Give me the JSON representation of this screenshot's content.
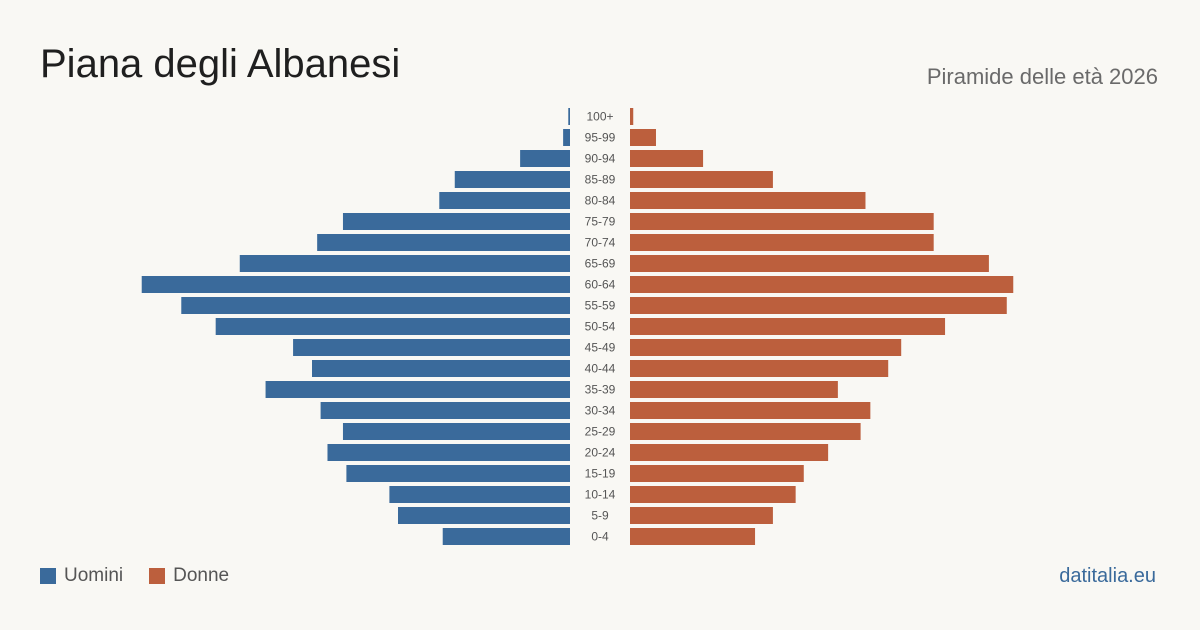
{
  "header": {
    "title": "Piana degli Albanesi",
    "subtitle": "Piramide delle età 2026"
  },
  "footer": {
    "brand": "datitalia.eu"
  },
  "colors": {
    "men": "#3a6a9b",
    "women": "#bc5f3d"
  },
  "chart_data": {
    "type": "bar",
    "orientation": "horizontal-pyramid",
    "categories": [
      "100+",
      "95-99",
      "90-94",
      "85-89",
      "80-84",
      "75-79",
      "70-74",
      "65-69",
      "60-64",
      "55-59",
      "50-54",
      "45-49",
      "40-44",
      "35-39",
      "30-34",
      "25-29",
      "20-24",
      "15-19",
      "10-14",
      "5-9",
      "0-4"
    ],
    "series": [
      {
        "name": "Uomini",
        "values": [
          1,
          4,
          29,
          67,
          76,
          132,
          147,
          192,
          249,
          226,
          206,
          161,
          150,
          177,
          145,
          132,
          141,
          130,
          105,
          100,
          74
        ]
      },
      {
        "name": "Donne",
        "values": [
          2,
          16,
          45,
          88,
          145,
          187,
          187,
          221,
          236,
          232,
          194,
          167,
          159,
          128,
          148,
          142,
          122,
          107,
          102,
          88,
          77
        ]
      }
    ],
    "xlim": [
      0,
      250
    ],
    "grid": false,
    "legend": "bottom-left"
  }
}
